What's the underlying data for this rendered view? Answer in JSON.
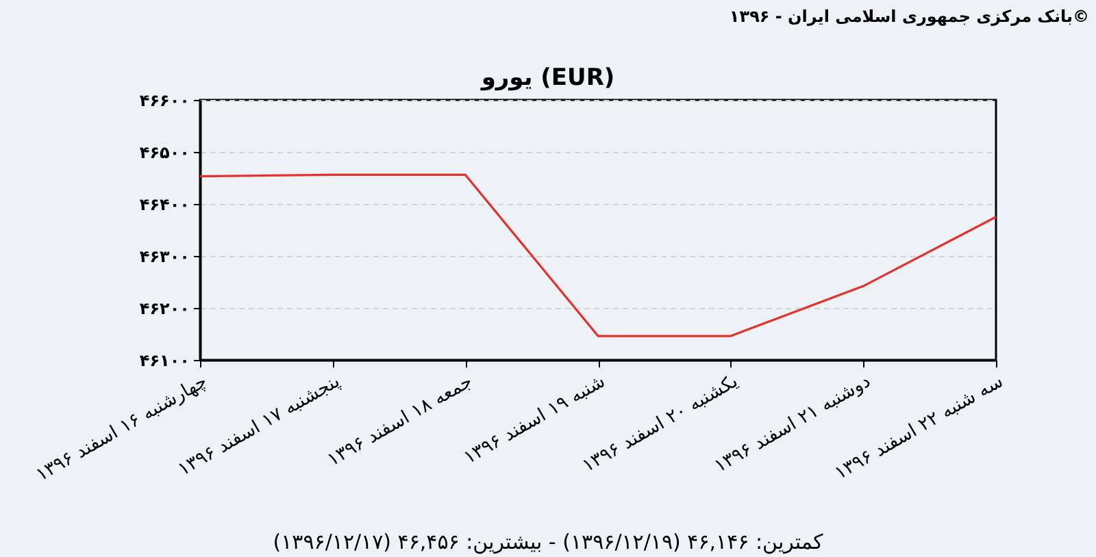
{
  "chart_data": {
    "type": "line",
    "title": "یورو (EUR)",
    "categories": [
      "چهارشنبه ۱۶ اسفند ۱۳۹۶",
      "پنجشنبه ۱۷ اسفند ۱۳۹۶",
      "جمعه ۱۸ اسفند ۱۳۹۶",
      "شنبه ۱۹ اسفند ۱۳۹۶",
      "یکشنبه ۲۰ اسفند ۱۳۹۶",
      "دوشنبه ۲۱ اسفند ۱۳۹۶",
      "سه شنبه ۲۲ اسفند ۱۳۹۶"
    ],
    "series": [
      {
        "color": "#e4312b",
        "values": [
          46453,
          46456,
          46456,
          46146,
          46146,
          46242,
          46375
        ]
      }
    ],
    "ylim": [
      46100,
      46600
    ],
    "yticks": [
      {
        "value": 46100,
        "label": "۴۶۱۰۰"
      },
      {
        "value": 46200,
        "label": "۴۶۲۰۰"
      },
      {
        "value": 46300,
        "label": "۴۶۳۰۰"
      },
      {
        "value": 46400,
        "label": "۴۶۴۰۰"
      },
      {
        "value": 46500,
        "label": "۴۶۵۰۰"
      },
      {
        "value": 46600,
        "label": "۴۶۶۰۰"
      }
    ],
    "grid": "y",
    "line_style": "solid",
    "annotations": [
      "بانک مرکزی جمهوری اسلامی ایران - ۱۳۹۶©",
      "کمترین: ۴۶,۱۴۶ (۱۳۹۶/۱۲/۱۹) - بیشترین: ۴۶,۴۵۶ (۱۳۹۶/۱۲/۱۷)"
    ]
  }
}
